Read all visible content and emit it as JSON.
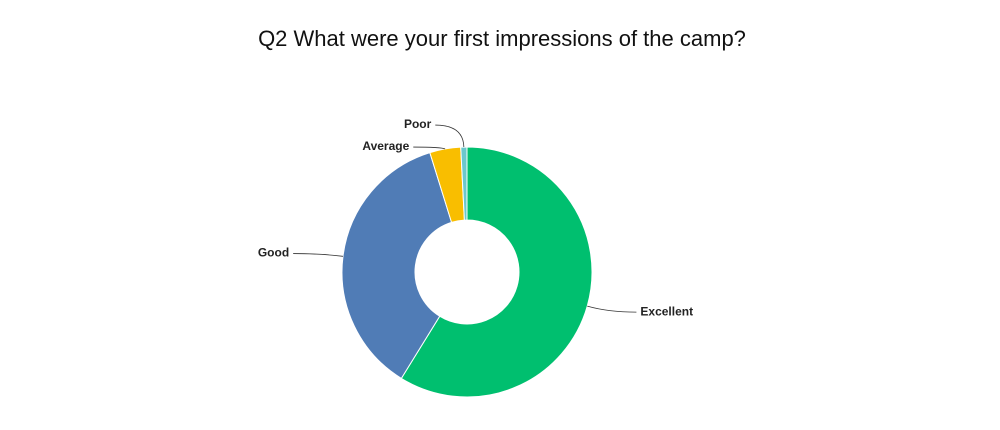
{
  "chart_data": {
    "type": "pie",
    "title": "Q2 What were your first impressions of the camp?",
    "categories": [
      "Excellent",
      "Good",
      "Average",
      "Poor"
    ],
    "values": [
      58.8,
      36.4,
      4.0,
      0.8
    ],
    "colors": [
      "#00bf6f",
      "#507cb6",
      "#f9be00",
      "#6bc8cd"
    ]
  }
}
